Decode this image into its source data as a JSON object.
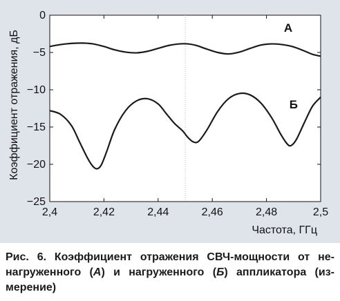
{
  "chart_data": {
    "type": "line",
    "xlabel": "Частота, ГГц",
    "ylabel": "Коэффициент отражения, дБ",
    "xlim": [
      2.4,
      2.5
    ],
    "ylim": [
      -25,
      0
    ],
    "xticks": [
      "2,4",
      "2,42",
      "2,44",
      "2,46",
      "2,48",
      "2,5"
    ],
    "xtick_values": [
      2.4,
      2.42,
      2.44,
      2.46,
      2.48,
      2.5
    ],
    "yticks": [
      "0",
      "−5",
      "−10",
      "−15",
      "−20",
      "−25"
    ],
    "ytick_values": [
      0,
      -5,
      -10,
      -15,
      -20,
      -25
    ],
    "vertical_gridline_at": 2.45,
    "series": [
      {
        "name": "А",
        "x": [
          2.4,
          2.403,
          2.406,
          2.41,
          2.413,
          2.416,
          2.42,
          2.424,
          2.428,
          2.432,
          2.436,
          2.44,
          2.444,
          2.448,
          2.451,
          2.454,
          2.458,
          2.462,
          2.466,
          2.47,
          2.474,
          2.478,
          2.482,
          2.486,
          2.49,
          2.494,
          2.497,
          2.5
        ],
        "y": [
          -4.2,
          -4.0,
          -3.85,
          -3.75,
          -3.75,
          -3.85,
          -4.2,
          -4.65,
          -4.95,
          -5.05,
          -4.85,
          -4.45,
          -4.05,
          -3.85,
          -3.85,
          -4.05,
          -4.55,
          -5.0,
          -5.2,
          -4.95,
          -4.45,
          -4.0,
          -3.85,
          -3.95,
          -4.25,
          -4.8,
          -5.25,
          -5.5
        ]
      },
      {
        "name": "Б",
        "x": [
          2.4,
          2.404,
          2.408,
          2.411,
          2.414,
          2.416,
          2.4175,
          2.419,
          2.421,
          2.424,
          2.428,
          2.432,
          2.436,
          2.44,
          2.443,
          2.446,
          2.449,
          2.451,
          2.453,
          2.455,
          2.458,
          2.462,
          2.466,
          2.47,
          2.474,
          2.478,
          2.482,
          2.485,
          2.4875,
          2.489,
          2.491,
          2.494,
          2.497,
          2.5
        ],
        "y": [
          -12.8,
          -13.3,
          -14.8,
          -17.0,
          -19.2,
          -20.3,
          -20.6,
          -20.1,
          -18.3,
          -15.3,
          -12.8,
          -11.5,
          -11.2,
          -11.9,
          -13.2,
          -14.5,
          -15.5,
          -16.4,
          -17.0,
          -16.9,
          -15.4,
          -12.9,
          -11.2,
          -10.5,
          -10.7,
          -11.8,
          -13.8,
          -15.8,
          -17.2,
          -17.5,
          -16.7,
          -14.4,
          -12.2,
          -11.0
        ]
      }
    ],
    "labels": [
      {
        "text": "А",
        "x": 2.488,
        "y": -2.2
      },
      {
        "text": "Б",
        "x": 2.49,
        "y": -12.5
      }
    ]
  },
  "caption": {
    "prefix": "Рис. 6. Коэффициент отражения СВЧ-мощности от не-нагруженного (",
    "a": "А",
    "middle": ") и нагруженного (",
    "b": "Б",
    "suffix": ") аппликатора (из-мерение)"
  }
}
